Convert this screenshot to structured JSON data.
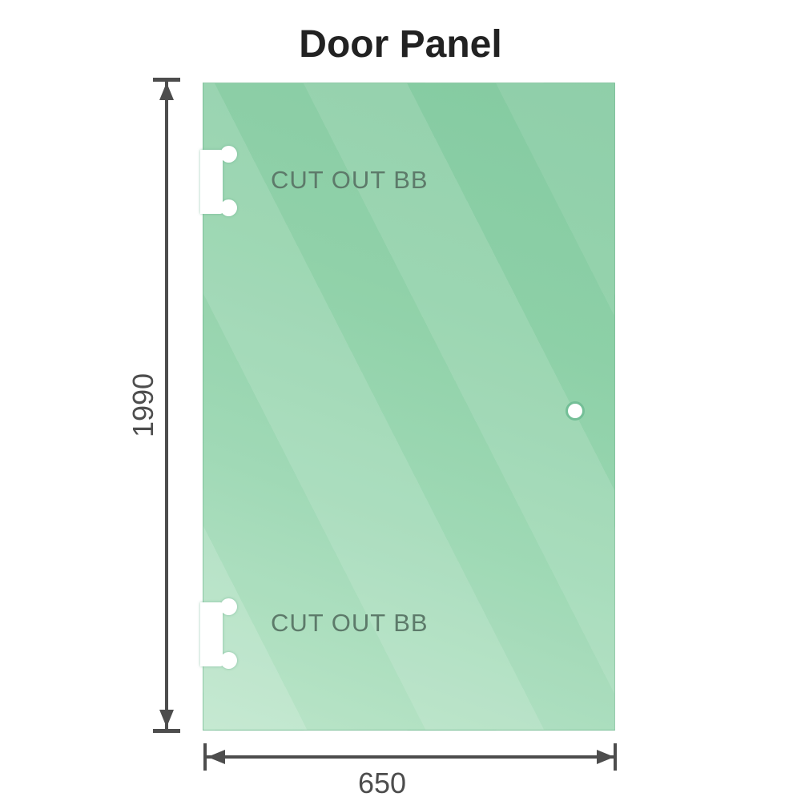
{
  "title": "Door Panel",
  "dimensions": {
    "height": "1990",
    "width": "650"
  },
  "cutouts": {
    "top": {
      "label": "CUT OUT BB"
    },
    "bottom": {
      "label": "CUT OUT BB"
    }
  },
  "colors": {
    "glass_base": "#8bcfa5",
    "glass_light": "#b7e3c6",
    "glass_dark": "#82c99f",
    "hole_ring": "#74bf97",
    "dimension_gray": "#4d4d4d",
    "cutout_text": "#5d7a6a",
    "title_text": "#222222",
    "background": "#ffffff"
  }
}
